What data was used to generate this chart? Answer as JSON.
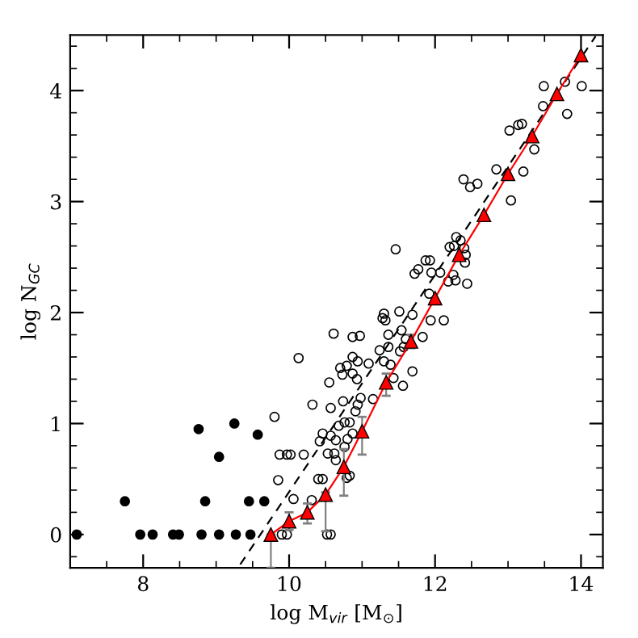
{
  "chart_data": {
    "type": "scatter",
    "xlabel": "log M$_{vir}$ [M$_{⊙}$]",
    "ylabel": "log N$_{GC}$",
    "xlim": [
      7,
      14.3
    ],
    "ylim": [
      -0.3,
      4.5
    ],
    "xticks": [
      {
        "value": 7,
        "label": null
      },
      {
        "value": 7.5,
        "label": null
      },
      8,
      {
        "value": 8.5,
        "label": null
      },
      {
        "value": 9,
        "label": null
      },
      {
        "value": 9.5,
        "label": null
      },
      10,
      {
        "value": 10.5,
        "label": null
      },
      {
        "value": 11,
        "label": null
      },
      {
        "value": 11.5,
        "label": null
      },
      12,
      {
        "value": 12.5,
        "label": null
      },
      {
        "value": 13,
        "label": null
      },
      {
        "value": 13.5,
        "label": null
      },
      14
    ],
    "yticks": [
      {
        "value": -0.2,
        "label": null
      },
      0,
      {
        "value": 0.2,
        "label": null
      },
      {
        "value": 0.4,
        "label": null
      },
      {
        "value": 0.6,
        "label": null
      },
      {
        "value": 0.8,
        "label": null
      },
      1,
      {
        "value": 1.2,
        "label": null
      },
      {
        "value": 1.4,
        "label": null
      },
      {
        "value": 1.6,
        "label": null
      },
      {
        "value": 1.8,
        "label": null
      },
      2,
      {
        "value": 2.2,
        "label": null
      },
      {
        "value": 2.4,
        "label": null
      },
      {
        "value": 2.6,
        "label": null
      },
      {
        "value": 2.8,
        "label": null
      },
      3,
      {
        "value": 3.2,
        "label": null
      },
      {
        "value": 3.4,
        "label": null
      },
      {
        "value": 3.6,
        "label": null
      },
      {
        "value": 3.8,
        "label": null
      },
      4,
      {
        "value": 4.2,
        "label": null
      },
      {
        "value": 4.4,
        "label": null
      }
    ],
    "grid": false,
    "legend": false,
    "series": [
      {
        "marker": "circle",
        "color": "#000000",
        "x": [
          12.84,
          13.21,
          12.39,
          12.58,
          12.48,
          13.04,
          11.46,
          12.29,
          12.35,
          12.26,
          12.4,
          12.2,
          12.42,
          12.41,
          11.87,
          11.93,
          11.77,
          11.72,
          11.95,
          12.07,
          12.25,
          12.28,
          12.18,
          12.44,
          11.92,
          11.94,
          12.12,
          11.3,
          11.32,
          11.51,
          11.69,
          11.28,
          10.61,
          10.87,
          10.97,
          11.36,
          11.54,
          11.83,
          11.6,
          11.57,
          11.52,
          11.24,
          11.36,
          10.13,
          10.87,
          10.94,
          11.3,
          11.09,
          11.39,
          10.7,
          10.79,
          10.73,
          10.87,
          11.69,
          10.55,
          10.93,
          11.43,
          11.56,
          10.32,
          10.57,
          10.74,
          10.98,
          11.15,
          10.94,
          10.91,
          9.8,
          10.76,
          10.83,
          10.68,
          10.46,
          10.57,
          10.87,
          10.64,
          10.42,
          9.87,
          9.97,
          10.53,
          10.76,
          10.64,
          9.85,
          10.46,
          10.79,
          9.9,
          9.97,
          10.06,
          10.52,
          10.57,
          10.31,
          10.4,
          10.62,
          10.8,
          10.83,
          10.2,
          10.02,
          13.49,
          13.78,
          14.01,
          13.48,
          13.81,
          13.02,
          13.14,
          13.19,
          13.36
        ],
        "values": [
          3.29,
          3.27,
          3.2,
          3.16,
          3.13,
          3.01,
          2.57,
          2.68,
          2.65,
          2.6,
          2.58,
          2.59,
          2.52,
          2.45,
          2.47,
          2.47,
          2.39,
          2.35,
          2.36,
          2.36,
          2.34,
          2.29,
          2.28,
          2.26,
          2.17,
          1.93,
          1.93,
          1.99,
          1.93,
          2.01,
          1.98,
          1.95,
          1.81,
          1.78,
          1.79,
          1.8,
          1.84,
          1.78,
          1.76,
          1.69,
          1.65,
          1.66,
          1.69,
          1.59,
          1.6,
          1.56,
          1.56,
          1.54,
          1.53,
          1.5,
          1.52,
          1.44,
          1.45,
          1.47,
          1.37,
          1.4,
          1.41,
          1.34,
          1.17,
          1.14,
          1.2,
          1.23,
          1.22,
          1.17,
          1.11,
          1.06,
          1.01,
          1.01,
          0.98,
          0.91,
          0.89,
          0.91,
          0.85,
          0.84,
          0.72,
          0.72,
          0.73,
          0.79,
          0.67,
          0.49,
          0.5,
          0.51,
          0,
          0,
          0.32,
          0,
          0,
          0.31,
          0.5,
          0.73,
          0.86,
          0.53,
          0.72,
          0.72,
          4.04,
          4.08,
          4.04,
          3.86,
          3.79,
          3.64,
          3.69,
          3.7,
          3.47
        ]
      },
      {
        "marker": "circle",
        "color": "#000000",
        "x": [
          7.09,
          7.75,
          7.96,
          8.13,
          8.41,
          8.49,
          8.8,
          9.04,
          9.27,
          9.47,
          8.76,
          9.25,
          9.57,
          9.04,
          8.85,
          9.45,
          9.66
        ],
        "values": [
          0,
          0.3,
          0,
          0,
          0,
          0,
          0,
          0,
          0,
          0,
          0.95,
          1,
          0.9,
          0.7,
          0.3,
          0.3,
          0.3
        ]
      },
      {
        "type": "line",
        "line_style": "dashed",
        "marker": "none",
        "color": "#000000",
        "x": [
          9.33,
          14.2
        ],
        "values": [
          -0.27,
          4.49
        ]
      },
      {
        "type": "line",
        "line_style": "solid",
        "marker": "triangle",
        "color": "#ff0000",
        "x": [
          9.75,
          10,
          10.25,
          10.5,
          10.75,
          11,
          11.33,
          11.67,
          12,
          12.33,
          12.67,
          13,
          13.33,
          13.67,
          14
        ],
        "values": [
          0,
          0.12,
          0.2,
          0.36,
          0.61,
          0.93,
          1.37,
          1.74,
          2.13,
          2.52,
          2.88,
          3.25,
          3.59,
          3.97,
          4.32
        ],
        "errors": [
          [
            -0.3,
            0
          ],
          [
            0.04,
            0.2
          ],
          [
            0.1,
            0.28
          ],
          [
            0.03,
            0.38
          ],
          [
            0.35,
            0.77
          ],
          [
            0.72,
            1.06
          ],
          [
            1.25,
            1.45
          ],
          [
            1.68,
            1.8
          ],
          null,
          null,
          null,
          null,
          null,
          null,
          null
        ]
      }
    ]
  }
}
